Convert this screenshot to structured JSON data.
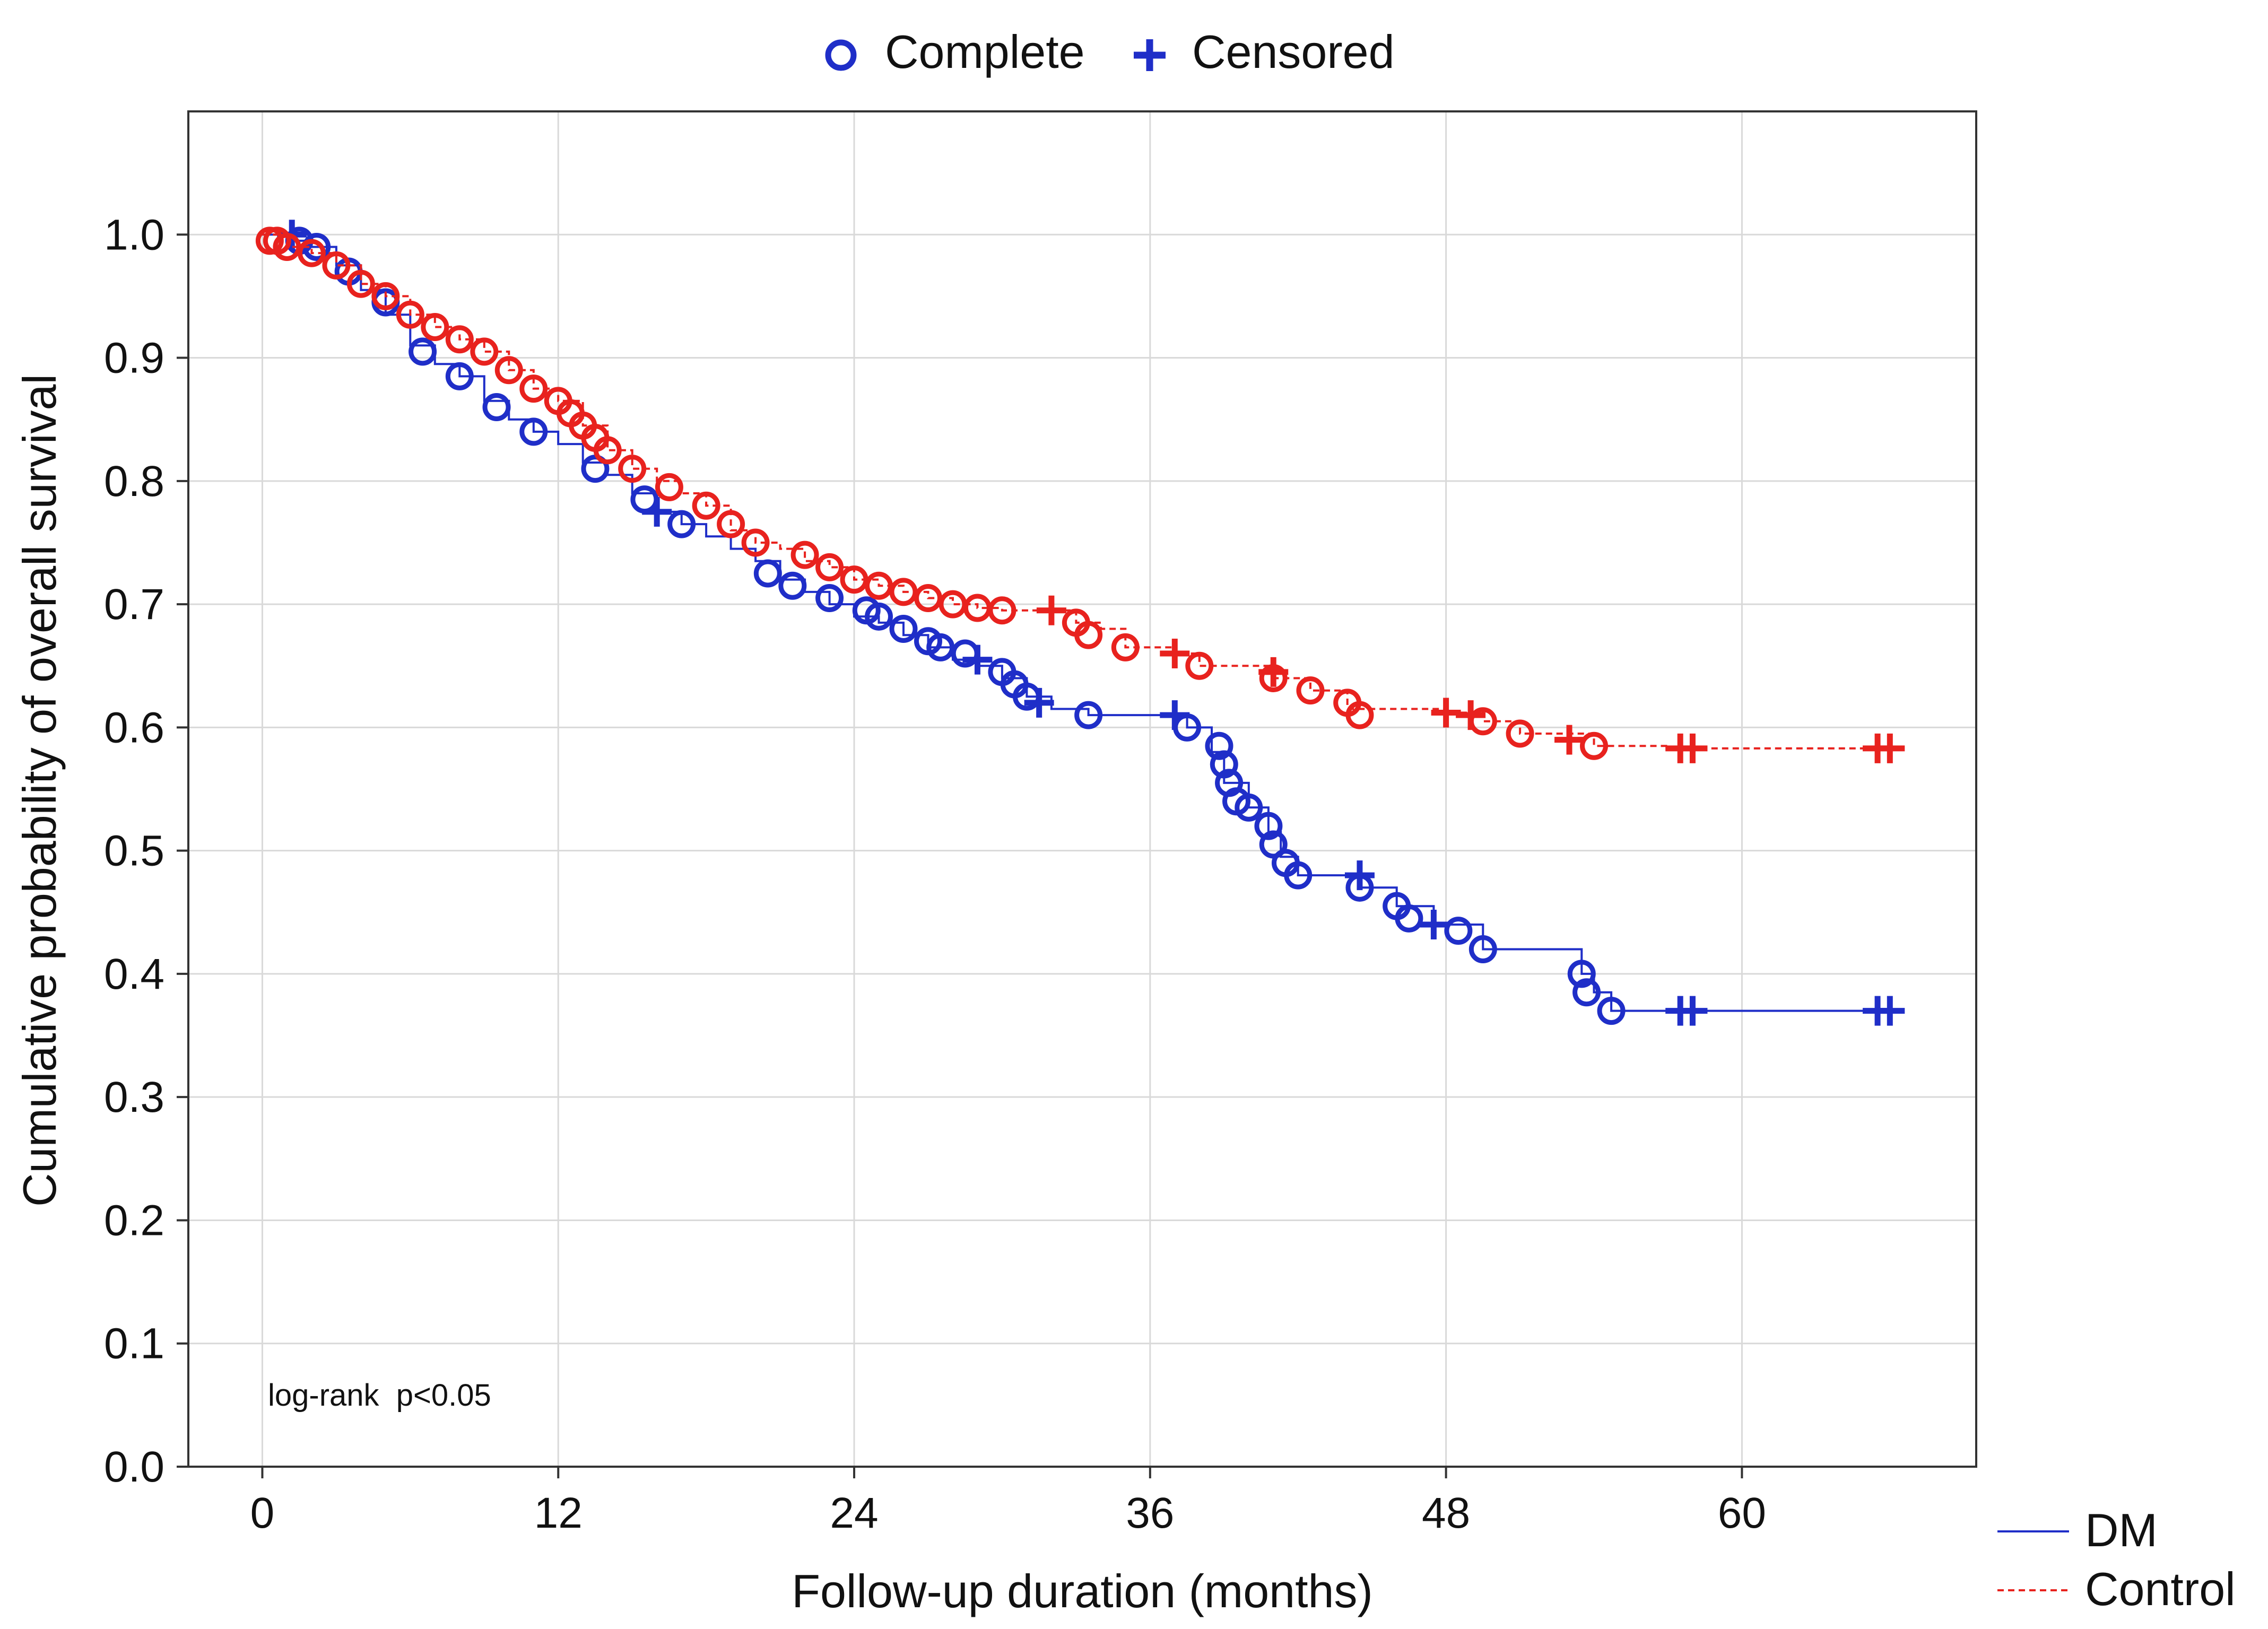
{
  "chart_data": {
    "type": "line",
    "subtype": "kaplan-meier",
    "title": "",
    "xlabel": "Follow-up duration (months)",
    "ylabel": "Cumulative probability of overall survival",
    "xlim": [
      -3,
      69.5
    ],
    "ylim": [
      0,
      1.1
    ],
    "x_ticks": [
      0,
      12,
      24,
      36,
      48,
      60
    ],
    "y_ticks": [
      0.0,
      0.1,
      0.2,
      0.3,
      0.4,
      0.5,
      0.6,
      0.7,
      0.8,
      0.9,
      1.0
    ],
    "grid": true,
    "annotation": "log-rank  p<0.05",
    "marker_legend": [
      {
        "label": "Complete",
        "marker": "circle"
      },
      {
        "label": "Censored",
        "marker": "plus"
      }
    ],
    "series": [
      {
        "name": "DM",
        "color": "#1f2ec8",
        "line_style": "solid",
        "points": [
          [
            0,
            1.0
          ],
          [
            1,
            0.995
          ],
          [
            2,
            0.99
          ],
          [
            3,
            0.975
          ],
          [
            4,
            0.955
          ],
          [
            5,
            0.935
          ],
          [
            6,
            0.91
          ],
          [
            7,
            0.895
          ],
          [
            8,
            0.885
          ],
          [
            9,
            0.865
          ],
          [
            10,
            0.85
          ],
          [
            11,
            0.84
          ],
          [
            12,
            0.83
          ],
          [
            13,
            0.815
          ],
          [
            14,
            0.805
          ],
          [
            15,
            0.79
          ],
          [
            16,
            0.775
          ],
          [
            17,
            0.765
          ],
          [
            18,
            0.755
          ],
          [
            19,
            0.745
          ],
          [
            20,
            0.735
          ],
          [
            21,
            0.72
          ],
          [
            22,
            0.71
          ],
          [
            23,
            0.7
          ],
          [
            24,
            0.69
          ],
          [
            25,
            0.685
          ],
          [
            26,
            0.675
          ],
          [
            27,
            0.665
          ],
          [
            28,
            0.655
          ],
          [
            29,
            0.65
          ],
          [
            30,
            0.64
          ],
          [
            31,
            0.625
          ],
          [
            32,
            0.615
          ],
          [
            33.5,
            0.61
          ],
          [
            37.5,
            0.6
          ],
          [
            38.5,
            0.58
          ],
          [
            39,
            0.555
          ],
          [
            40,
            0.535
          ],
          [
            40.8,
            0.515
          ],
          [
            41.3,
            0.495
          ],
          [
            42,
            0.48
          ],
          [
            44.5,
            0.47
          ],
          [
            46,
            0.455
          ],
          [
            47.5,
            0.44
          ],
          [
            49.5,
            0.42
          ],
          [
            53.5,
            0.4
          ],
          [
            54,
            0.385
          ],
          [
            54.7,
            0.37
          ],
          [
            66.5,
            0.37
          ]
        ],
        "complete_events": [
          [
            1.5,
            0.995
          ],
          [
            2.2,
            0.99
          ],
          [
            3.5,
            0.97
          ],
          [
            5,
            0.945
          ],
          [
            6.5,
            0.905
          ],
          [
            8,
            0.885
          ],
          [
            9.5,
            0.86
          ],
          [
            11,
            0.84
          ],
          [
            13.5,
            0.81
          ],
          [
            15.5,
            0.785
          ],
          [
            17,
            0.765
          ],
          [
            20.5,
            0.725
          ],
          [
            21.5,
            0.715
          ],
          [
            23,
            0.705
          ],
          [
            24.5,
            0.695
          ],
          [
            25,
            0.69
          ],
          [
            26,
            0.68
          ],
          [
            27,
            0.67
          ],
          [
            27.5,
            0.665
          ],
          [
            28.5,
            0.66
          ],
          [
            30,
            0.645
          ],
          [
            30.5,
            0.635
          ],
          [
            31,
            0.625
          ],
          [
            33.5,
            0.61
          ],
          [
            37.5,
            0.6
          ],
          [
            38.8,
            0.585
          ],
          [
            39,
            0.57
          ],
          [
            39.2,
            0.555
          ],
          [
            39.5,
            0.54
          ],
          [
            40,
            0.535
          ],
          [
            40.8,
            0.52
          ],
          [
            41,
            0.505
          ],
          [
            41.5,
            0.49
          ],
          [
            42,
            0.48
          ],
          [
            44.5,
            0.47
          ],
          [
            46,
            0.455
          ],
          [
            46.5,
            0.445
          ],
          [
            48.5,
            0.435
          ],
          [
            49.5,
            0.42
          ],
          [
            53.5,
            0.4
          ],
          [
            53.7,
            0.385
          ],
          [
            54.7,
            0.37
          ]
        ],
        "censored_events": [
          [
            1.2,
            1.0
          ],
          [
            16,
            0.775
          ],
          [
            29,
            0.655
          ],
          [
            31.5,
            0.62
          ],
          [
            37,
            0.61
          ],
          [
            44.5,
            0.48
          ],
          [
            47.5,
            0.44
          ],
          [
            57.5,
            0.37
          ],
          [
            58,
            0.37
          ],
          [
            65.5,
            0.37
          ],
          [
            66,
            0.37
          ]
        ]
      },
      {
        "name": "Control",
        "color": "#e8221e",
        "line_style": "dashed",
        "points": [
          [
            0,
            1.0
          ],
          [
            1,
            0.99
          ],
          [
            2,
            0.985
          ],
          [
            3,
            0.975
          ],
          [
            4,
            0.96
          ],
          [
            5,
            0.95
          ],
          [
            6,
            0.935
          ],
          [
            7,
            0.925
          ],
          [
            8,
            0.915
          ],
          [
            9,
            0.905
          ],
          [
            10,
            0.89
          ],
          [
            11,
            0.875
          ],
          [
            12,
            0.865
          ],
          [
            13,
            0.845
          ],
          [
            14,
            0.825
          ],
          [
            15,
            0.81
          ],
          [
            16,
            0.8
          ],
          [
            17,
            0.79
          ],
          [
            18,
            0.78
          ],
          [
            19,
            0.76
          ],
          [
            20,
            0.75
          ],
          [
            21,
            0.745
          ],
          [
            22,
            0.735
          ],
          [
            23,
            0.73
          ],
          [
            24,
            0.72
          ],
          [
            25,
            0.715
          ],
          [
            26,
            0.71
          ],
          [
            27,
            0.705
          ],
          [
            28,
            0.7
          ],
          [
            29,
            0.697
          ],
          [
            30,
            0.695
          ],
          [
            32,
            0.695
          ],
          [
            33,
            0.685
          ],
          [
            34,
            0.68
          ],
          [
            35,
            0.665
          ],
          [
            37,
            0.66
          ],
          [
            38,
            0.65
          ],
          [
            41,
            0.64
          ],
          [
            42.5,
            0.63
          ],
          [
            44,
            0.615
          ],
          [
            48,
            0.612
          ],
          [
            49.5,
            0.605
          ],
          [
            51,
            0.595
          ],
          [
            54,
            0.585
          ],
          [
            57,
            0.583
          ],
          [
            66.5,
            0.583
          ]
        ],
        "complete_events": [
          [
            0.3,
            0.995
          ],
          [
            0.6,
            0.995
          ],
          [
            1,
            0.99
          ],
          [
            2,
            0.985
          ],
          [
            3,
            0.975
          ],
          [
            4,
            0.96
          ],
          [
            5,
            0.95
          ],
          [
            6,
            0.935
          ],
          [
            7,
            0.925
          ],
          [
            8,
            0.915
          ],
          [
            9,
            0.905
          ],
          [
            10,
            0.89
          ],
          [
            11,
            0.875
          ],
          [
            12,
            0.865
          ],
          [
            12.5,
            0.855
          ],
          [
            13,
            0.845
          ],
          [
            13.5,
            0.835
          ],
          [
            14,
            0.825
          ],
          [
            15,
            0.81
          ],
          [
            16.5,
            0.795
          ],
          [
            18,
            0.78
          ],
          [
            19,
            0.765
          ],
          [
            20,
            0.75
          ],
          [
            22,
            0.74
          ],
          [
            23,
            0.73
          ],
          [
            24,
            0.72
          ],
          [
            25,
            0.715
          ],
          [
            26,
            0.71
          ],
          [
            27,
            0.705
          ],
          [
            28,
            0.7
          ],
          [
            29,
            0.697
          ],
          [
            30,
            0.695
          ],
          [
            33,
            0.685
          ],
          [
            33.5,
            0.675
          ],
          [
            35,
            0.665
          ],
          [
            38,
            0.65
          ],
          [
            41,
            0.64
          ],
          [
            42.5,
            0.63
          ],
          [
            44,
            0.62
          ],
          [
            44.5,
            0.61
          ],
          [
            49.5,
            0.605
          ],
          [
            51,
            0.595
          ],
          [
            54,
            0.585
          ]
        ],
        "censored_events": [
          [
            32,
            0.695
          ],
          [
            37,
            0.66
          ],
          [
            41,
            0.645
          ],
          [
            48,
            0.612
          ],
          [
            49,
            0.61
          ],
          [
            53,
            0.59
          ],
          [
            57.5,
            0.583
          ],
          [
            58,
            0.583
          ],
          [
            65.5,
            0.583
          ],
          [
            66,
            0.583
          ]
        ]
      }
    ],
    "series_legend": [
      {
        "label": "DM",
        "line_style": "solid",
        "color": "#1f2ec8"
      },
      {
        "label": "Control",
        "line_style": "dashed",
        "color": "#e8221e"
      }
    ]
  }
}
